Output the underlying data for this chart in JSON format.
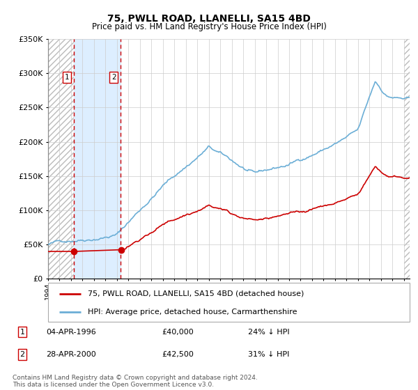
{
  "title": "75, PWLL ROAD, LLANELLI, SA15 4BD",
  "subtitle": "Price paid vs. HM Land Registry's House Price Index (HPI)",
  "hpi_label": "HPI: Average price, detached house, Carmarthenshire",
  "price_label": "75, PWLL ROAD, LLANELLI, SA15 4BD (detached house)",
  "sale1_date": "04-APR-1996",
  "sale1_price": 40000,
  "sale1_hpi_diff": "24% ↓ HPI",
  "sale2_date": "28-APR-2000",
  "sale2_price": 42500,
  "sale2_hpi_diff": "31% ↓ HPI",
  "footer": "Contains HM Land Registry data © Crown copyright and database right 2024.\nThis data is licensed under the Open Government Licence v3.0.",
  "hpi_color": "#6baed6",
  "price_color": "#cc0000",
  "sale_marker_color": "#cc0000",
  "vline_color": "#cc0000",
  "shade_color": "#ddeeff",
  "ylim": [
    0,
    350000
  ],
  "yticks": [
    0,
    50000,
    100000,
    150000,
    200000,
    250000,
    300000,
    350000
  ],
  "ytick_labels": [
    "£0",
    "£50K",
    "£100K",
    "£150K",
    "£200K",
    "£250K",
    "£300K",
    "£350K"
  ],
  "xstart_year": 1994.0,
  "xend_year": 2025.5,
  "sale1_x": 1996.25,
  "sale2_x": 2000.33
}
